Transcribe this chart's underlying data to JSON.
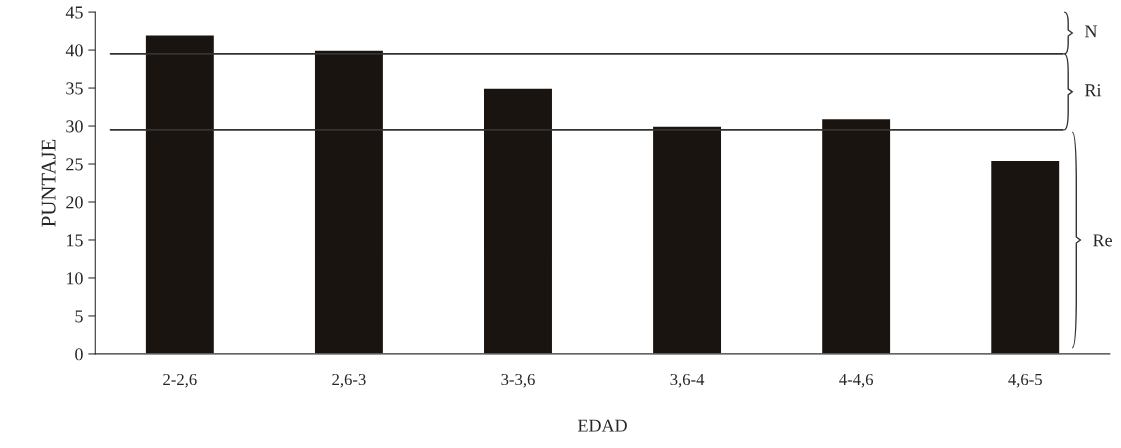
{
  "chart_data": {
    "type": "bar",
    "xlabel": "EDAD",
    "ylabel": "PUNTAJE",
    "categories": [
      "2-2,6",
      "2,6-3",
      "3-3,6",
      "3,6-4",
      "4-4,6",
      "4,6-5"
    ],
    "values": [
      42,
      40,
      35,
      30,
      31,
      25.5
    ],
    "color": "#1a1410",
    "ylim": [
      0,
      45
    ],
    "yticks": [
      0,
      5,
      10,
      15,
      20,
      25,
      30,
      35,
      40,
      45
    ],
    "grid": false,
    "ref_lines": [
      {
        "axis": "y",
        "value": 39.5,
        "color": "#333333",
        "line_style": "solid"
      },
      {
        "axis": "y",
        "value": 29.5,
        "color": "#333333",
        "line_style": "solid"
      }
    ],
    "annotations": [
      "N",
      "Ri",
      "Re"
    ]
  }
}
